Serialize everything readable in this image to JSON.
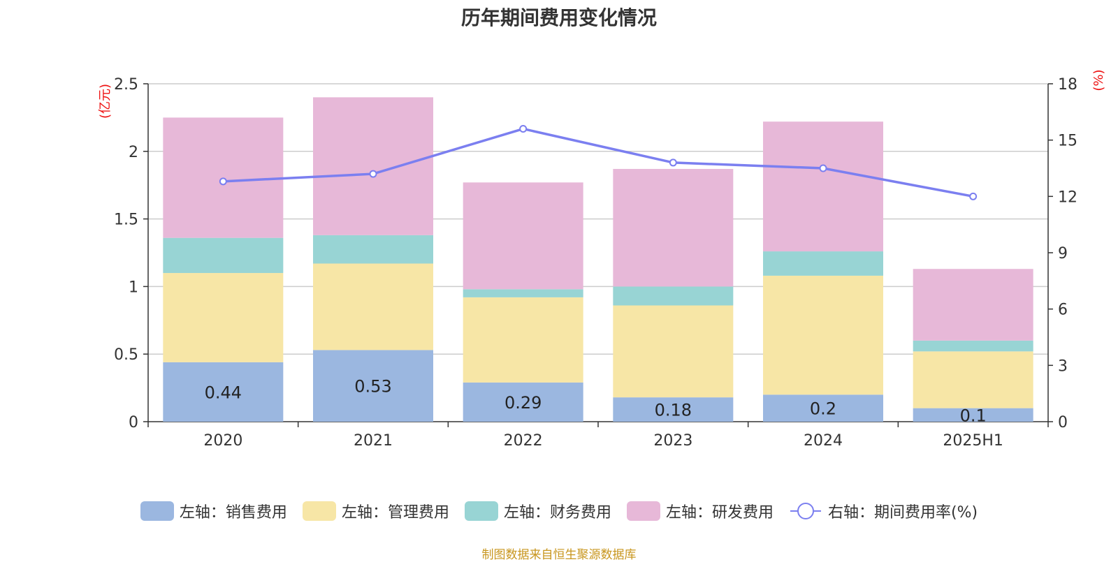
{
  "chart_data": {
    "type": "bar",
    "title": "历年期间费用变化情况",
    "categories": [
      "2020",
      "2021",
      "2022",
      "2023",
      "2024",
      "2025H1"
    ],
    "stacked": true,
    "left_axis": {
      "unit_label": "(亿元)",
      "ylim": [
        0,
        2.5
      ],
      "ticks": [
        "0",
        "0.5",
        "1",
        "1.5",
        "2",
        "2.5"
      ]
    },
    "right_axis": {
      "unit_label": "(%)",
      "ylim": [
        0,
        18
      ],
      "ticks": [
        "0",
        "3",
        "6",
        "9",
        "12",
        "15",
        "18"
      ]
    },
    "series": [
      {
        "name": "左轴：销售费用",
        "type": "bar",
        "axis": "left",
        "color": "#9bb7e0",
        "values": [
          0.44,
          0.53,
          0.29,
          0.18,
          0.2,
          0.1
        ],
        "data_labels": [
          "0.44",
          "0.53",
          "0.29",
          "0.18",
          "0.2",
          "0.1"
        ]
      },
      {
        "name": "左轴：管理费用",
        "type": "bar",
        "axis": "left",
        "color": "#f7e6a6",
        "values": [
          0.66,
          0.64,
          0.63,
          0.68,
          0.88,
          0.42
        ]
      },
      {
        "name": "左轴：财务费用",
        "type": "bar",
        "axis": "left",
        "color": "#98d4d4",
        "values": [
          0.26,
          0.21,
          0.06,
          0.14,
          0.18,
          0.08
        ]
      },
      {
        "name": "左轴：研发费用",
        "type": "bar",
        "axis": "left",
        "color": "#e7b8d8",
        "values": [
          0.89,
          1.02,
          0.79,
          0.87,
          0.96,
          0.53
        ]
      },
      {
        "name": "右轴：期间费用率(%)",
        "type": "line",
        "axis": "right",
        "color": "#7b7ff0",
        "values": [
          12.8,
          13.2,
          15.6,
          13.8,
          13.5,
          12.0
        ]
      }
    ],
    "grid": true,
    "legend_position": "bottom"
  },
  "source_note": "制图数据来自恒生聚源数据库"
}
